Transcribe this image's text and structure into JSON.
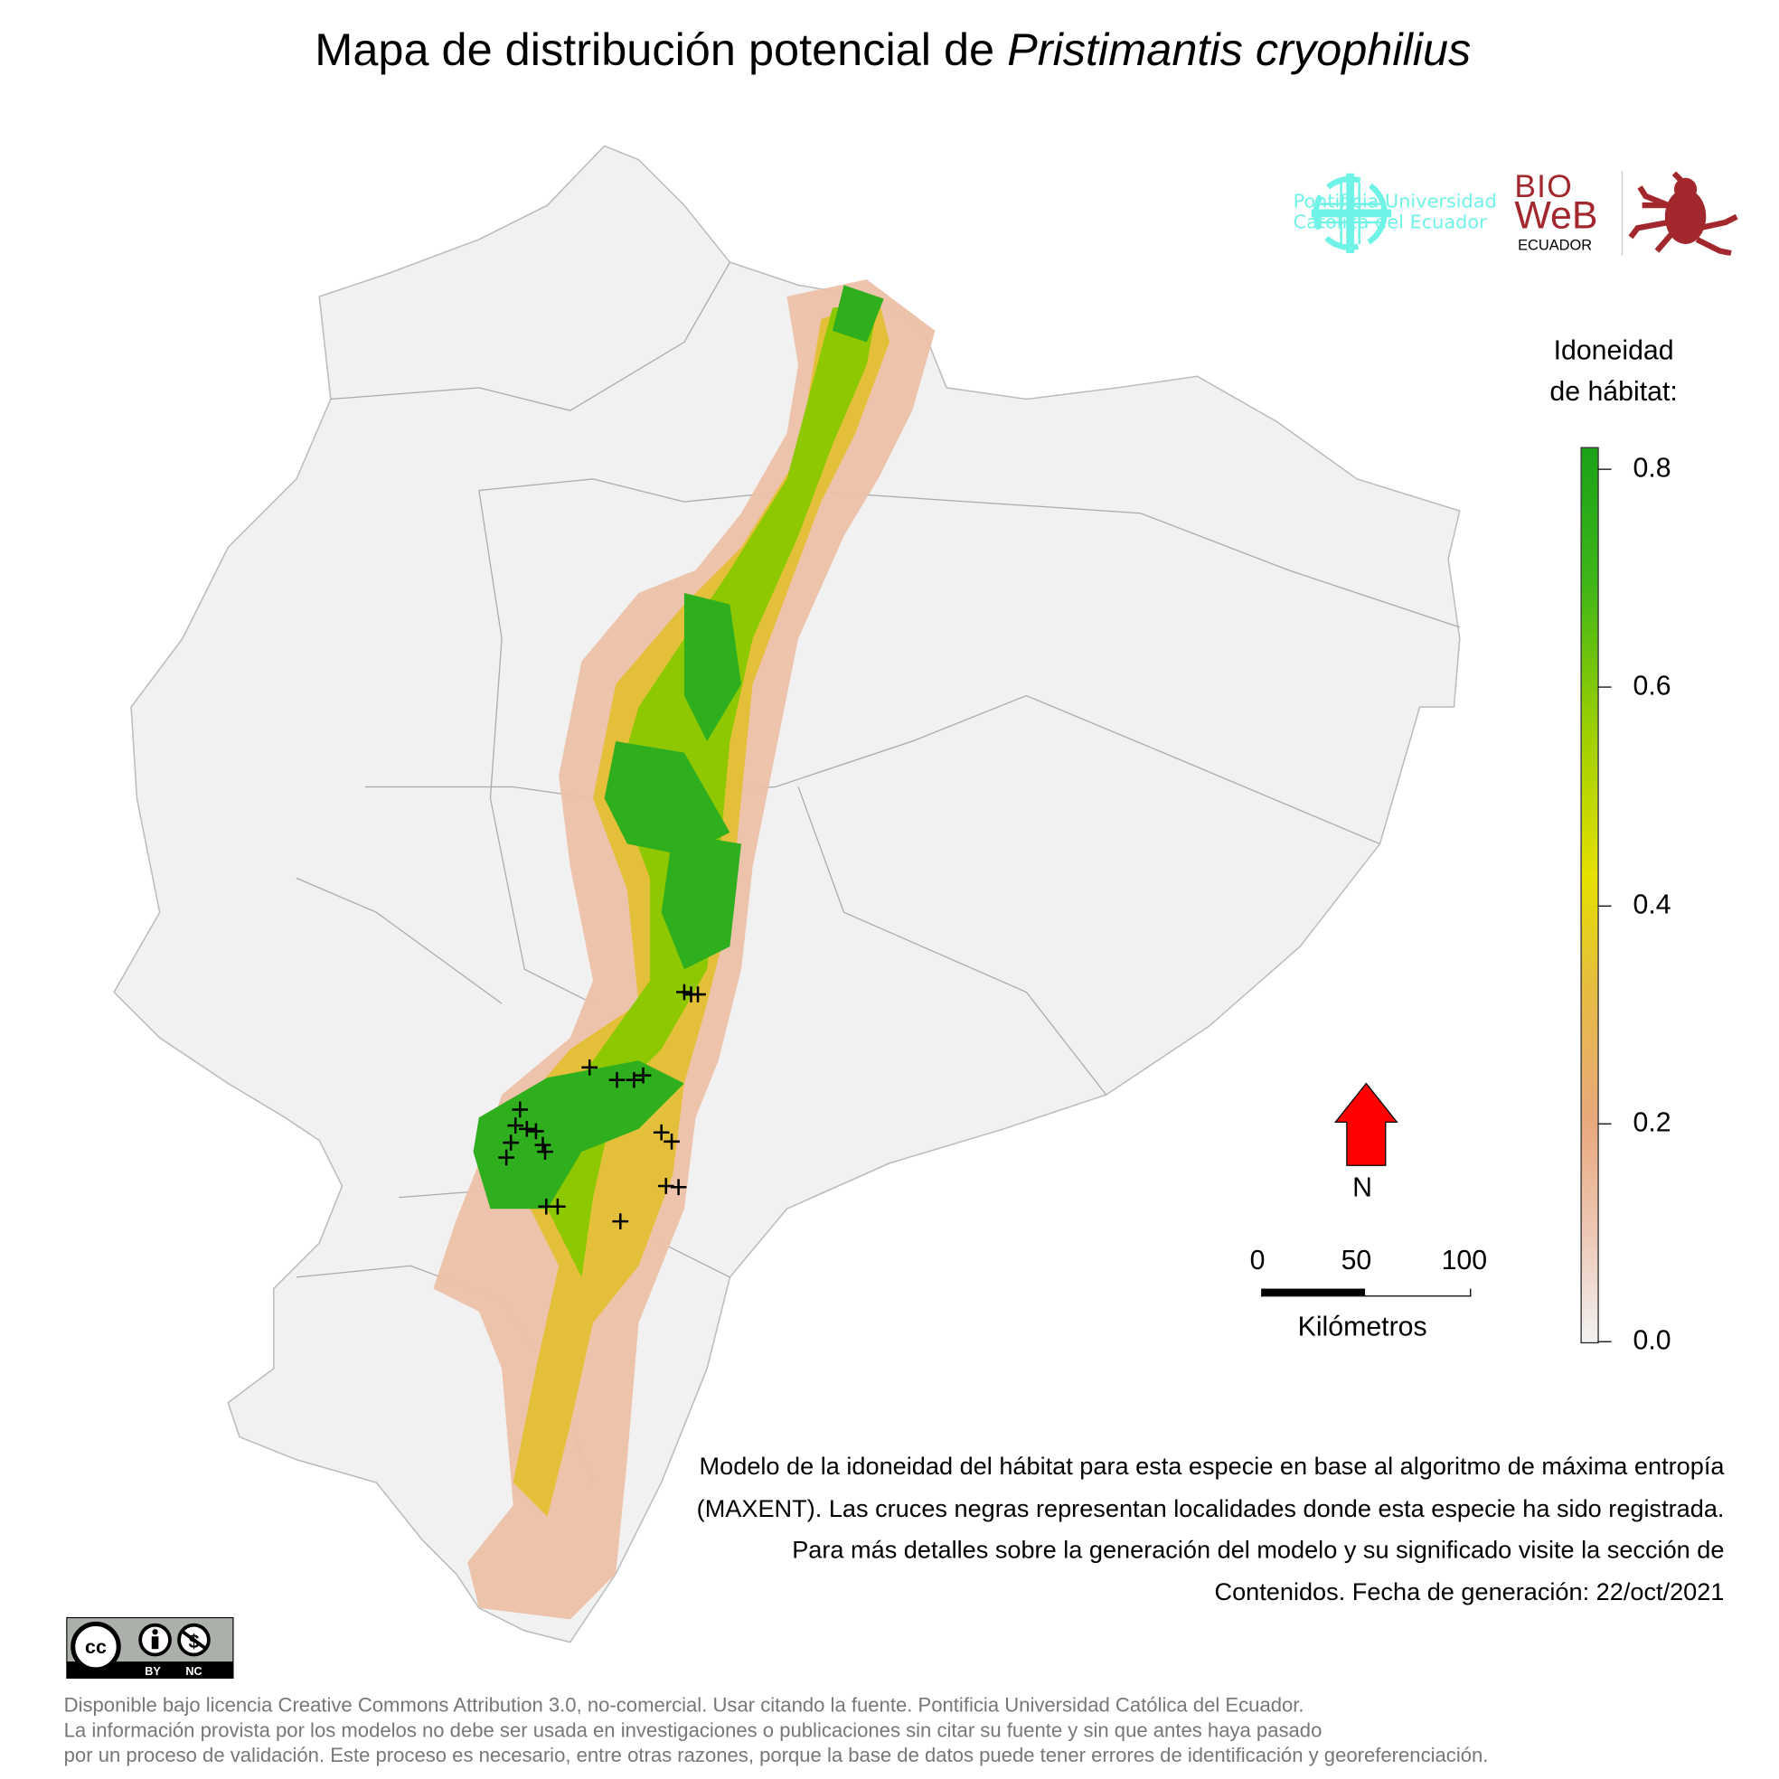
{
  "title": {
    "prefix": "Mapa de distribución potencial de ",
    "species": "Pristimantis cryophilius"
  },
  "logos": {
    "puce": {
      "line1": "Pontificia Universidad",
      "line2": "Católica del Ecuador"
    },
    "bioweb": {
      "bio": "BIO",
      "web": "WeB",
      "country": "ECUADOR"
    },
    "cc": {
      "by": "BY",
      "nc": "NC"
    }
  },
  "legend": {
    "title_line1": "Idoneidad",
    "title_line2": "de hábitat:",
    "ticks": [
      "0.8",
      "0.6",
      "0.4",
      "0.2",
      "0.0"
    ],
    "tick_values": [
      0.8,
      0.6,
      0.4,
      0.2,
      0.0
    ],
    "range": [
      0,
      0.82
    ]
  },
  "north_arrow": {
    "label": "N",
    "color": "#ff0000"
  },
  "scale_bar": {
    "labels": [
      "0",
      "50",
      "100"
    ],
    "unit": "Kilómetros"
  },
  "description": "Modelo de la idoneidad del hábitat para esta especie en base al algoritmo de máxima entropía (MAXENT). Las cruces negras representan localidades donde esta especie ha sido registrada. Para más detalles sobre la generación del modelo y su significado visite la sección de Contenidos. Fecha de generación: 22/oct/2021",
  "footer": {
    "line1": "Disponible bajo licencia Creative Commons Attribution 3.0, no-comercial. Usar citando la fuente. Pontificia Universidad Católica del Ecuador.",
    "line2": "La información provista por los modelos no debe ser usada en investigaciones o publicaciones sin citar su fuente y sin que antes haya pasado",
    "line3": "por un proceso de validación. Este proceso es necesario, entre otras razones, porque la base de datos puede tener errores de identificación y georeferenciación."
  }
}
